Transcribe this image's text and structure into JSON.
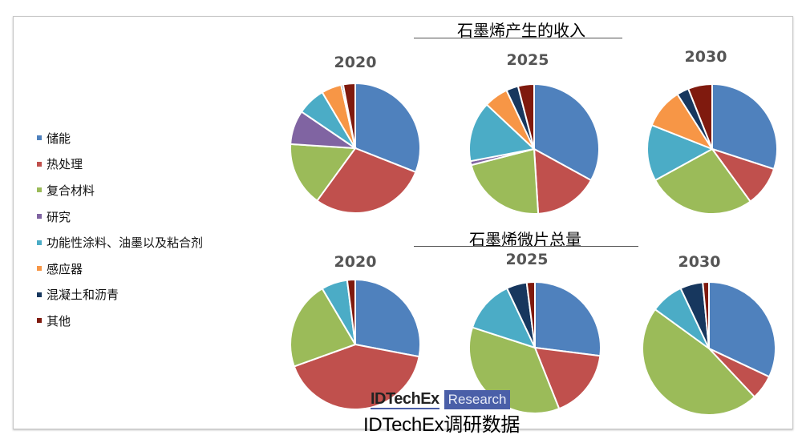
{
  "colors": {
    "储能": "#4f81bd",
    "热处理": "#c0504d",
    "复合材料": "#9bbb59",
    "研究": "#8064a2",
    "功能性涂料、油墨以及粘合剂": "#4bacc6",
    "感应器": "#f79646",
    "混凝土和沥青": "#17375e",
    "其他": "#7f1a0e"
  },
  "legend": [
    {
      "label": "储能",
      "color": "#4f81bd"
    },
    {
      "label": "热处理",
      "color": "#c0504d"
    },
    {
      "label": "复合材料",
      "color": "#9bbb59"
    },
    {
      "label": "研究",
      "color": "#8064a2"
    },
    {
      "label": "功能性涂料、油墨以及粘合剂",
      "color": "#4bacc6"
    },
    {
      "label": "感应器",
      "color": "#f79646"
    },
    {
      "label": "混凝土和沥青",
      "color": "#17375e"
    },
    {
      "label": "其他",
      "color": "#7f1a0e"
    }
  ],
  "sections": {
    "revenue_title": "石墨烯产生的收入",
    "volume_title": "石墨烯微片总量"
  },
  "branding": {
    "logo_name": "IDTechEx",
    "logo_badge": "Research",
    "source": "IDTechEx调研数据"
  },
  "chart_data": [
    {
      "type": "pie",
      "title": "石墨烯产生的收入",
      "subtitle": "2020",
      "categories": [
        "储能",
        "热处理",
        "复合材料",
        "研究",
        "功能性涂料、油墨以及粘合剂",
        "感应器",
        "混凝土和沥青",
        "其他"
      ],
      "values": [
        31,
        29,
        16,
        8.5,
        7,
        5,
        0.5,
        3
      ]
    },
    {
      "type": "pie",
      "title": "石墨烯产生的收入",
      "subtitle": "2025",
      "categories": [
        "储能",
        "热处理",
        "复合材料",
        "研究",
        "功能性涂料、油墨以及粘合剂",
        "感应器",
        "混凝土和沥青",
        "其他"
      ],
      "values": [
        33,
        16,
        22,
        1,
        15,
        6,
        3,
        4
      ]
    },
    {
      "type": "pie",
      "title": "石墨烯产生的收入",
      "subtitle": "2030",
      "categories": [
        "储能",
        "热处理",
        "复合材料",
        "研究",
        "功能性涂料、油墨以及粘合剂",
        "感应器",
        "混凝土和沥青",
        "其他"
      ],
      "values": [
        30,
        10,
        27,
        0,
        14,
        10,
        3,
        6
      ]
    },
    {
      "type": "pie",
      "title": "石墨烯微片总量",
      "subtitle": "2020",
      "categories": [
        "储能",
        "热处理",
        "复合材料",
        "研究",
        "功能性涂料、油墨以及粘合剂",
        "感应器",
        "混凝土和沥青",
        "其他"
      ],
      "values": [
        28,
        41.5,
        22,
        0,
        6.5,
        0,
        0,
        2
      ]
    },
    {
      "type": "pie",
      "title": "石墨烯微片总量",
      "subtitle": "2025",
      "categories": [
        "储能",
        "热处理",
        "复合材料",
        "研究",
        "功能性涂料、油墨以及粘合剂",
        "感应器",
        "混凝土和沥青",
        "其他"
      ],
      "values": [
        27,
        17,
        36,
        0,
        13,
        0,
        5,
        2
      ]
    },
    {
      "type": "pie",
      "title": "石墨烯微片总量",
      "subtitle": "2030",
      "categories": [
        "储能",
        "热处理",
        "复合材料",
        "研究",
        "功能性涂料、油墨以及粘合剂",
        "感应器",
        "混凝土和沥青",
        "其他"
      ],
      "values": [
        32,
        6,
        47,
        0,
        8,
        0,
        5.5,
        1.5
      ]
    }
  ]
}
